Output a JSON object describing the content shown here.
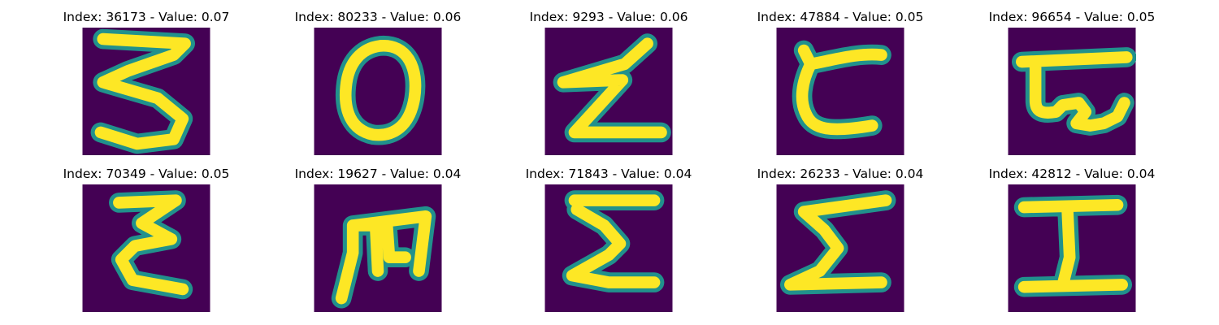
{
  "colormap": {
    "background": "#440154",
    "mid": "#21918c",
    "foreground": "#fde725"
  },
  "samples": [
    {
      "index": "36173",
      "value": "0.07",
      "title": "Index: 36173 - Value: 0.07",
      "glyph": "3"
    },
    {
      "index": "80233",
      "value": "0.06",
      "title": "Index: 80233 - Value: 0.06",
      "glyph": "O"
    },
    {
      "index": "9293",
      "value": "0.06",
      "title": "Index: 9293 - Value: 0.06",
      "glyph": "Z"
    },
    {
      "index": "47884",
      "value": "0.05",
      "title": "Index: 47884 - Value: 0.05",
      "glyph": "C"
    },
    {
      "index": "96654",
      "value": "0.05",
      "title": "Index: 96654 - Value: 0.05",
      "glyph": "G"
    },
    {
      "index": "70349",
      "value": "0.05",
      "title": "Index: 70349 - Value: 0.05",
      "glyph": "E"
    },
    {
      "index": "19627",
      "value": "0.04",
      "title": "Index: 19627 - Value: 0.04",
      "glyph": "M"
    },
    {
      "index": "71843",
      "value": "0.04",
      "title": "Index: 71843 - Value: 0.04",
      "glyph": "Sigma1"
    },
    {
      "index": "26233",
      "value": "0.04",
      "title": "Index: 26233 - Value: 0.04",
      "glyph": "Sigma2"
    },
    {
      "index": "42812",
      "value": "0.04",
      "title": "Index: 42812 - Value: 0.04",
      "glyph": "I"
    }
  ]
}
